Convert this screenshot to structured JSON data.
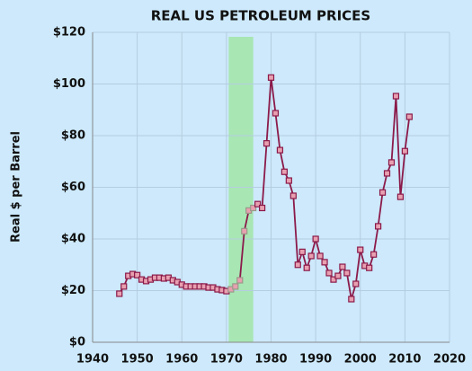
{
  "chart_data": {
    "type": "line",
    "title": "REAL US PETROLEUM PRICES",
    "y_label": "Real $ per Barrel",
    "x": [
      1946,
      1947,
      1948,
      1949,
      1950,
      1951,
      1952,
      1953,
      1954,
      1955,
      1956,
      1957,
      1958,
      1959,
      1960,
      1961,
      1962,
      1963,
      1964,
      1965,
      1966,
      1967,
      1968,
      1969,
      1970,
      1971,
      1972,
      1973,
      1974,
      1975,
      1976,
      1977,
      1978,
      1979,
      1980,
      1981,
      1982,
      1983,
      1984,
      1985,
      1986,
      1987,
      1988,
      1989,
      1990,
      1991,
      1992,
      1993,
      1994,
      1995,
      1996,
      1997,
      1998,
      1999,
      2000,
      2001,
      2002,
      2003,
      2004,
      2005,
      2006,
      2007,
      2008,
      2009,
      2010,
      2011
    ],
    "series": [
      {
        "color": "#8b1a4a",
        "marker_fill": "#e8a0b0",
        "values": [
          18.8,
          21.6,
          25.7,
          26.4,
          26,
          24.3,
          23.7,
          24.3,
          25,
          25,
          24.7,
          25,
          24,
          23.3,
          22.3,
          21.6,
          21.6,
          21.6,
          21.6,
          21.6,
          21.2,
          21.2,
          20.5,
          20.2,
          19.8,
          20.5,
          21.6,
          24,
          43,
          51,
          52,
          53.5,
          52,
          77,
          102.5,
          88.7,
          74.4,
          66,
          62.6,
          56.7,
          30,
          35,
          28.8,
          33.4,
          40,
          33.4,
          31,
          26.8,
          24.3,
          25.7,
          29.2,
          26.8,
          16.7,
          22.6,
          35.8,
          29.6,
          28.8,
          34,
          44.9,
          58,
          65.4,
          69.6,
          95.3,
          56.3,
          74,
          87.3
        ]
      }
    ],
    "highlight_range": [
      1970.5,
      1976
    ],
    "highlight_color": "#a8e6b4",
    "highlight_marker_color": "#9a9a8a",
    "xlim": [
      1940,
      2020
    ],
    "xticks": [
      1940,
      1950,
      1960,
      1970,
      1980,
      1990,
      2000,
      2010,
      2020
    ],
    "ylim": [
      0,
      120
    ],
    "yticks": [
      {
        "value": 0,
        "label": "$0"
      },
      {
        "value": 20,
        "label": "$20"
      },
      {
        "value": 40,
        "label": "$40"
      },
      {
        "value": 60,
        "label": "$60"
      },
      {
        "value": 80,
        "label": "$80"
      },
      {
        "value": 100,
        "label": "$100"
      },
      {
        "value": 120,
        "label": "$120"
      }
    ],
    "grid": true
  }
}
